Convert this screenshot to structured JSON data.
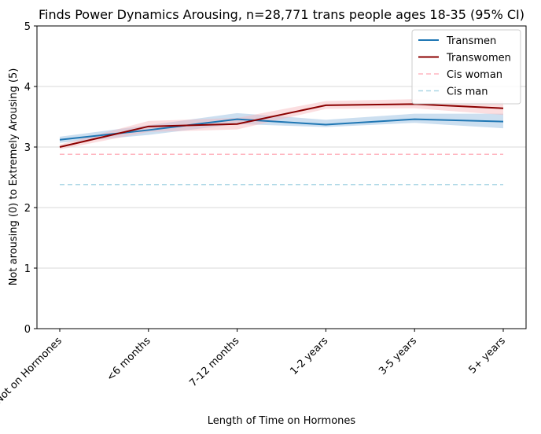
{
  "chart_data": {
    "type": "line",
    "title": "Finds Power Dynamics Arousing, n=28,771 trans people ages 18-35 (95% CI)",
    "xlabel": "Length of Time on Hormones",
    "ylabel": "Not arousing (0) to Extremely Arousing (5)",
    "categories": [
      "Not on Hormones",
      "<6 months",
      "7-12 months",
      "1-2 years",
      "3-5 years",
      "5+ years"
    ],
    "ylim": [
      0,
      5
    ],
    "yticks": [
      "0",
      "1",
      "2",
      "3",
      "4",
      "5"
    ],
    "grid": "horizontal",
    "legend_position": "top-right",
    "series": [
      {
        "name": "Transmen",
        "color": "#1f77b4",
        "style": "solid",
        "values": [
          3.12,
          3.28,
          3.46,
          3.37,
          3.46,
          3.42
        ],
        "ci_lower": [
          3.07,
          3.2,
          3.38,
          3.33,
          3.4,
          3.31
        ],
        "ci_upper": [
          3.17,
          3.36,
          3.56,
          3.45,
          3.55,
          3.55
        ]
      },
      {
        "name": "Transwomen",
        "color": "#8b0000",
        "style": "solid",
        "values": [
          3.0,
          3.34,
          3.38,
          3.69,
          3.71,
          3.64
        ],
        "ci_lower": [
          2.96,
          3.25,
          3.29,
          3.63,
          3.64,
          3.53
        ],
        "ci_upper": [
          3.04,
          3.43,
          3.48,
          3.76,
          3.79,
          3.76
        ]
      },
      {
        "name": "Cis woman",
        "color": "#ffb6c1",
        "style": "dashed",
        "values": [
          2.88,
          2.88,
          2.88,
          2.88,
          2.88,
          2.88
        ]
      },
      {
        "name": "Cis man",
        "color": "#add8e6",
        "style": "dashed",
        "values": [
          2.38,
          2.38,
          2.38,
          2.38,
          2.38,
          2.38
        ]
      }
    ]
  }
}
